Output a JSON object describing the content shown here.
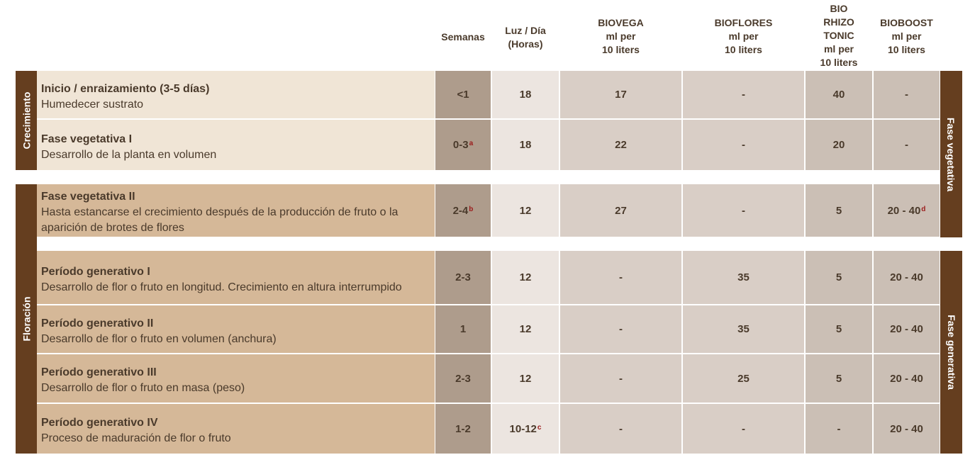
{
  "headers": {
    "semanas": "Semanas",
    "luz": "Luz / Día\n(Horas)",
    "biovega": "BIOVEGA\nml per\n10 liters",
    "bioflores": "BIOFLORES\nml per\n10 liters",
    "biorhizo": "BIO\nRHIZO\nTONIC\nml per\n10 liters",
    "bioboost": "BIOBOOST\nml per\n10 liters"
  },
  "left_labels": {
    "crecimiento": "Crecimiento",
    "floracion": "Floración"
  },
  "right_labels": {
    "vegetativa": "Fase vegetativa",
    "generativa": "Fase generativa"
  },
  "rows": [
    {
      "title": "Inicio / enraizamiento (3-5 días)",
      "desc": "Humedecer sustrato",
      "semanas": "<1",
      "sem_note": "",
      "luz": "18",
      "luz_note": "",
      "biovega": "17",
      "bioflores": "-",
      "biorhizo": "40",
      "bioboost": "-",
      "boost_note": ""
    },
    {
      "title": "Fase vegetativa I",
      "desc": "Desarrollo de la planta en volumen",
      "semanas": "0-3",
      "sem_note": "a",
      "luz": "18",
      "luz_note": "",
      "biovega": "22",
      "bioflores": "-",
      "biorhizo": "20",
      "bioboost": "-",
      "boost_note": ""
    },
    {
      "title": "Fase vegetativa II",
      "desc": "Hasta estancarse el crecimiento después de la producción de fruto o la aparición de brotes de flores",
      "semanas": "2-4",
      "sem_note": "b",
      "luz": "12",
      "luz_note": "",
      "biovega": "27",
      "bioflores": "-",
      "biorhizo": "5",
      "bioboost": "20 - 40",
      "boost_note": "d"
    },
    {
      "title": "Período generativo I",
      "desc": "Desarrollo de flor o fruto en longitud. Crecimiento en altura interrumpido",
      "semanas": "2-3",
      "sem_note": "",
      "luz": "12",
      "luz_note": "",
      "biovega": "-",
      "bioflores": "35",
      "biorhizo": "5",
      "bioboost": "20 - 40",
      "boost_note": ""
    },
    {
      "title": "Período generativo II",
      "desc": "Desarrollo de flor o fruto en volumen (anchura)",
      "semanas": "1",
      "sem_note": "",
      "luz": "12",
      "luz_note": "",
      "biovega": "-",
      "bioflores": "35",
      "biorhizo": "5",
      "bioboost": "20 - 40",
      "boost_note": ""
    },
    {
      "title": "Período generativo III",
      "desc": "Desarrollo de flor o fruto en masa (peso)",
      "semanas": "2-3",
      "sem_note": "",
      "luz": "12",
      "luz_note": "",
      "biovega": "-",
      "bioflores": "25",
      "biorhizo": "5",
      "bioboost": "20 - 40",
      "boost_note": ""
    },
    {
      "title": "Período generativo IV",
      "desc": "Proceso de maduración de flor o fruto",
      "semanas": "1-2",
      "sem_note": "",
      "luz": "10-12",
      "luz_note": "c",
      "biovega": "-",
      "bioflores": "-",
      "biorhizo": "-",
      "bioboost": "20 - 40",
      "boost_note": ""
    }
  ]
}
